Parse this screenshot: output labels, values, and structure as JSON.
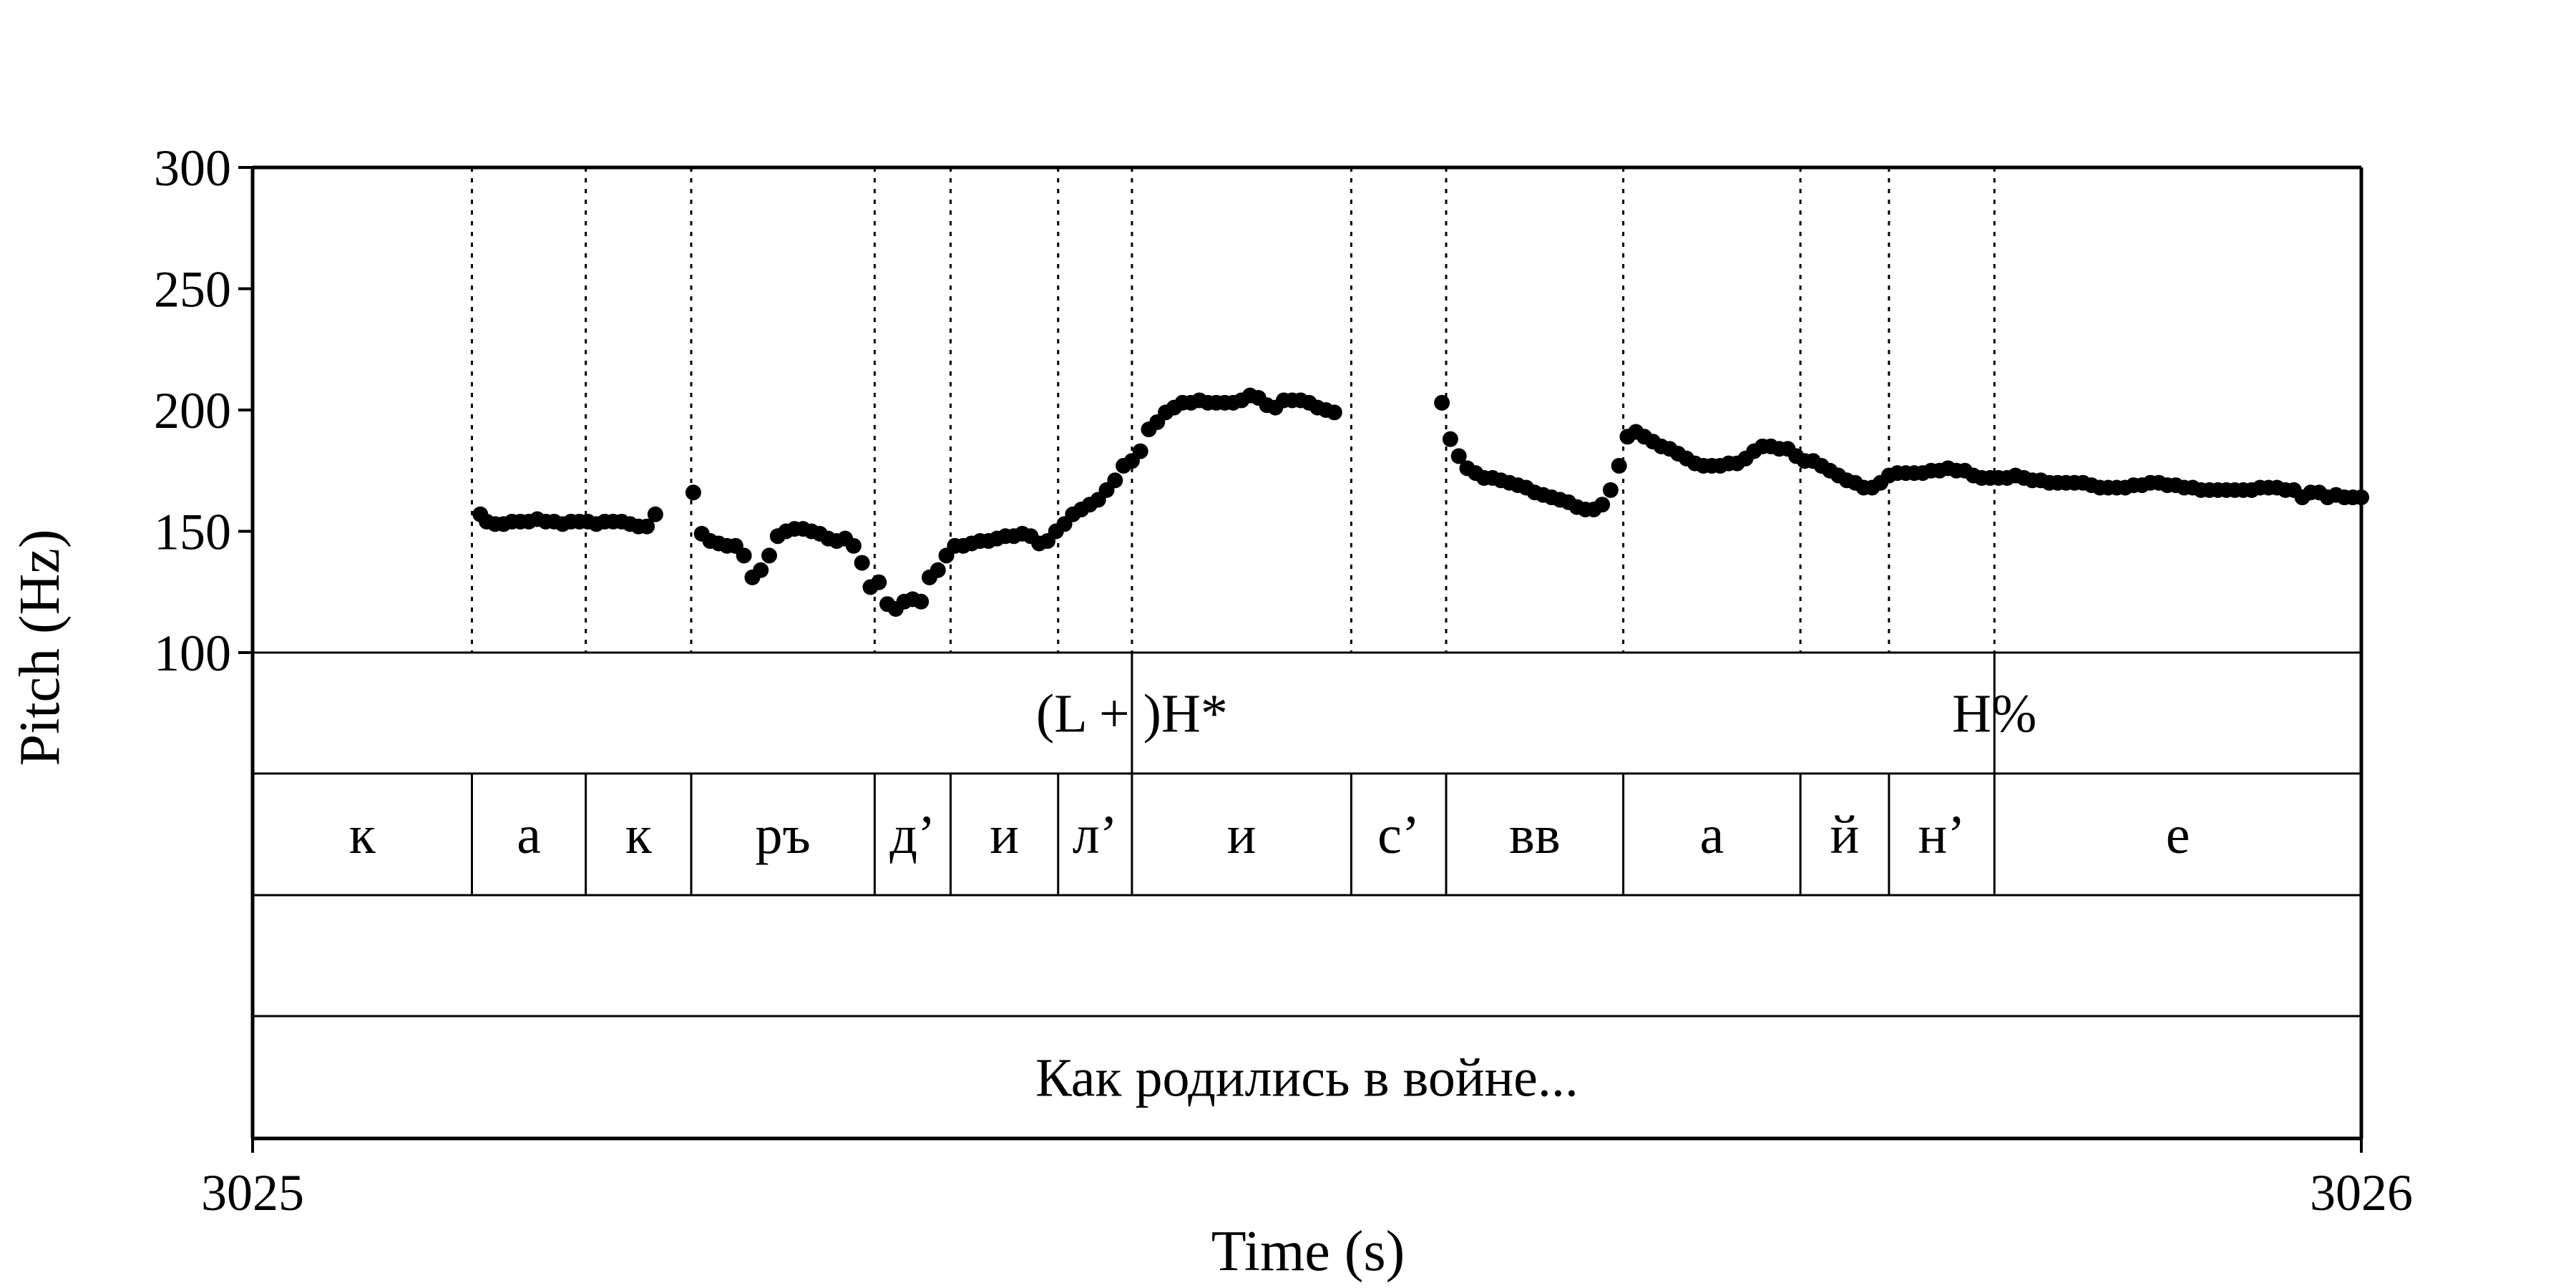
{
  "chart_data": {
    "type": "scatter",
    "ylabel": "Pitch (Hz)",
    "xlabel": "Time (s)",
    "xlim": [
      3025,
      3026
    ],
    "ylim": [
      100,
      300
    ],
    "yticks": [
      100,
      150,
      200,
      250,
      300
    ],
    "xtick_labels": [
      "3025",
      "3026"
    ],
    "grid": false,
    "point_color": "#000000",
    "boundaries": [
      3025.104,
      3025.158,
      3025.208,
      3025.295,
      3025.331,
      3025.382,
      3025.417,
      3025.521,
      3025.566,
      3025.65,
      3025.734,
      3025.776,
      3025.826
    ],
    "tone_tier": [
      {
        "label": "(L + )H*",
        "time": 3025.417
      },
      {
        "label": "H%",
        "time": 3025.826
      }
    ],
    "segments": [
      {
        "label": "к",
        "start": 3025.0,
        "end": 3025.104
      },
      {
        "label": "а",
        "start": 3025.104,
        "end": 3025.158
      },
      {
        "label": "к",
        "start": 3025.158,
        "end": 3025.208
      },
      {
        "label": "ръ",
        "start": 3025.208,
        "end": 3025.295
      },
      {
        "label": "д’",
        "start": 3025.295,
        "end": 3025.331
      },
      {
        "label": "и",
        "start": 3025.331,
        "end": 3025.382
      },
      {
        "label": "л’",
        "start": 3025.382,
        "end": 3025.417
      },
      {
        "label": "и",
        "start": 3025.417,
        "end": 3025.521
      },
      {
        "label": "с’",
        "start": 3025.521,
        "end": 3025.566
      },
      {
        "label": "вв",
        "start": 3025.566,
        "end": 3025.65
      },
      {
        "label": "а",
        "start": 3025.65,
        "end": 3025.734
      },
      {
        "label": "й",
        "start": 3025.734,
        "end": 3025.776
      },
      {
        "label": "н’",
        "start": 3025.776,
        "end": 3025.826
      },
      {
        "label": "е",
        "start": 3025.826,
        "end": 3026.0
      }
    ],
    "empty_tier": "",
    "sentence": "Как родились в войне...",
    "pitch_contours": [
      {
        "x": [
          3025.108,
          3025.111,
          3025.115,
          3025.119,
          3025.123,
          3025.127,
          3025.131,
          3025.135,
          3025.139,
          3025.143,
          3025.147,
          3025.151,
          3025.155,
          3025.159,
          3025.163,
          3025.167,
          3025.171,
          3025.175,
          3025.179,
          3025.183,
          3025.187,
          3025.191
        ],
        "y": [
          157,
          154,
          153,
          153,
          154,
          154,
          154,
          155,
          154,
          154,
          153,
          154,
          154,
          154,
          153,
          154,
          154,
          154,
          153,
          152,
          152,
          157
        ]
      },
      {
        "x": [
          3025.209,
          3025.213,
          3025.217,
          3025.221,
          3025.225,
          3025.229,
          3025.233,
          3025.237,
          3025.241,
          3025.245,
          3025.249,
          3025.253,
          3025.257,
          3025.261,
          3025.265,
          3025.269,
          3025.273,
          3025.277,
          3025.281,
          3025.285,
          3025.289,
          3025.293,
          3025.297,
          3025.301,
          3025.305,
          3025.309,
          3025.313,
          3025.317,
          3025.321,
          3025.325,
          3025.329,
          3025.333,
          3025.337,
          3025.341,
          3025.345,
          3025.349,
          3025.353,
          3025.357,
          3025.361,
          3025.365,
          3025.369,
          3025.373,
          3025.377,
          3025.381,
          3025.385,
          3025.389,
          3025.393,
          3025.397,
          3025.401,
          3025.405,
          3025.409,
          3025.413,
          3025.417,
          3025.421,
          3025.425,
          3025.429,
          3025.433,
          3025.437,
          3025.441,
          3025.445,
          3025.449,
          3025.453,
          3025.457,
          3025.461,
          3025.465,
          3025.469,
          3025.473,
          3025.477,
          3025.481,
          3025.485,
          3025.489,
          3025.493,
          3025.497,
          3025.501,
          3025.505,
          3025.509,
          3025.513
        ],
        "y": [
          166,
          149,
          146,
          145,
          144,
          144,
          140,
          131,
          134,
          140,
          148,
          150,
          151,
          151,
          150,
          149,
          147,
          146,
          147,
          144,
          137,
          127,
          129,
          120,
          118,
          121,
          122,
          121,
          131,
          134,
          140,
          144,
          144,
          145,
          146,
          146,
          147,
          148,
          148,
          149,
          148,
          145,
          146,
          150,
          153,
          157,
          159,
          161,
          163,
          167,
          171,
          177,
          179,
          183,
          192,
          195,
          199,
          201,
          203,
          203,
          204,
          203,
          203,
          203,
          203,
          204,
          206,
          205,
          202,
          201,
          204,
          204,
          204,
          203,
          201,
          200,
          199
        ]
      },
      {
        "x": [
          3025.564,
          3025.568,
          3025.572,
          3025.576,
          3025.58,
          3025.584,
          3025.588,
          3025.592,
          3025.596,
          3025.6,
          3025.604,
          3025.608,
          3025.612,
          3025.616,
          3025.62,
          3025.624,
          3025.628,
          3025.632,
          3025.636,
          3025.64,
          3025.644,
          3025.648,
          3025.652,
          3025.656,
          3025.66,
          3025.664,
          3025.668,
          3025.672,
          3025.676,
          3025.68,
          3025.684,
          3025.688,
          3025.692,
          3025.696,
          3025.7,
          3025.704,
          3025.708,
          3025.712,
          3025.716,
          3025.72,
          3025.724,
          3025.728,
          3025.732,
          3025.736,
          3025.74,
          3025.744,
          3025.748,
          3025.752,
          3025.756,
          3025.76,
          3025.764,
          3025.768,
          3025.772,
          3025.776,
          3025.78,
          3025.784,
          3025.788,
          3025.792,
          3025.796,
          3025.8,
          3025.804,
          3025.808,
          3025.812,
          3025.816,
          3025.82,
          3025.824,
          3025.828,
          3025.832,
          3025.836,
          3025.84,
          3025.844,
          3025.848,
          3025.852,
          3025.856,
          3025.86,
          3025.864,
          3025.868,
          3025.872,
          3025.876,
          3025.88,
          3025.884,
          3025.888,
          3025.892,
          3025.896,
          3025.9,
          3025.904,
          3025.908,
          3025.912,
          3025.916,
          3025.92,
          3025.924,
          3025.928,
          3025.932,
          3025.936,
          3025.94,
          3025.944,
          3025.948,
          3025.952,
          3025.956,
          3025.96,
          3025.964,
          3025.968,
          3025.972,
          3025.976,
          3025.98,
          3025.984,
          3025.988,
          3025.992,
          3025.996,
          3026.0
        ],
        "y": [
          203,
          188,
          181,
          176,
          174,
          172,
          172,
          171,
          170,
          169,
          168,
          166,
          165,
          164,
          163,
          162,
          160,
          159,
          159,
          161,
          167,
          177,
          189,
          191,
          189,
          187,
          185,
          184,
          182,
          180,
          178,
          177,
          177,
          177,
          178,
          178,
          180,
          183,
          185,
          185,
          184,
          184,
          181,
          179,
          179,
          177,
          175,
          173,
          171,
          170,
          168,
          168,
          170,
          173,
          174,
          174,
          174,
          174,
          175,
          175,
          176,
          175,
          175,
          173,
          172,
          172,
          172,
          172,
          173,
          172,
          171,
          171,
          170,
          170,
          170,
          170,
          170,
          169,
          168,
          168,
          168,
          168,
          169,
          169,
          170,
          170,
          169,
          169,
          168,
          168,
          167,
          167,
          167,
          167,
          167,
          167,
          167,
          168,
          168,
          168,
          167,
          167,
          164,
          166,
          166,
          164,
          165,
          164,
          164,
          164
        ]
      }
    ]
  }
}
